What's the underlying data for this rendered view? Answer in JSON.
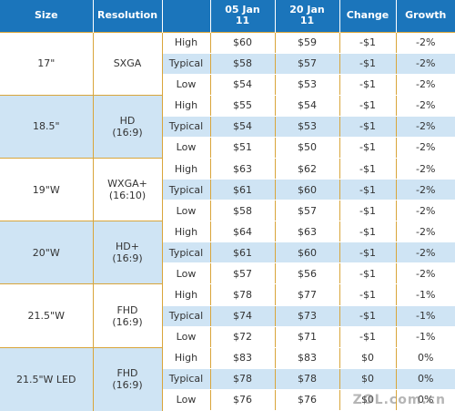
{
  "table": {
    "headers": [
      "Size",
      "Resolution",
      "",
      "05 Jan 11",
      "20 Jan 11",
      "Change",
      "Growth"
    ],
    "groups": [
      {
        "size": "17\"",
        "resolution": "SXGA",
        "rows": [
          {
            "tier": "High",
            "jan05": "$60",
            "jan20": "$59",
            "change": "-$1",
            "growth": "-2%"
          },
          {
            "tier": "Typical",
            "jan05": "$58",
            "jan20": "$57",
            "change": "-$1",
            "growth": "-2%"
          },
          {
            "tier": "Low",
            "jan05": "$54",
            "jan20": "$53",
            "change": "-$1",
            "growth": "-2%"
          }
        ]
      },
      {
        "size": "18.5\"",
        "resolution": "HD\n(16:9)",
        "rows": [
          {
            "tier": "High",
            "jan05": "$55",
            "jan20": "$54",
            "change": "-$1",
            "growth": "-2%"
          },
          {
            "tier": "Typical",
            "jan05": "$54",
            "jan20": "$53",
            "change": "-$1",
            "growth": "-2%"
          },
          {
            "tier": "Low",
            "jan05": "$51",
            "jan20": "$50",
            "change": "-$1",
            "growth": "-2%"
          }
        ]
      },
      {
        "size": "19\"W",
        "resolution": "WXGA+\n(16:10)",
        "rows": [
          {
            "tier": "High",
            "jan05": "$63",
            "jan20": "$62",
            "change": "-$1",
            "growth": "-2%"
          },
          {
            "tier": "Typical",
            "jan05": "$61",
            "jan20": "$60",
            "change": "-$1",
            "growth": "-2%"
          },
          {
            "tier": "Low",
            "jan05": "$58",
            "jan20": "$57",
            "change": "-$1",
            "growth": "-2%"
          }
        ]
      },
      {
        "size": "20\"W",
        "resolution": "HD+\n(16:9)",
        "rows": [
          {
            "tier": "High",
            "jan05": "$64",
            "jan20": "$63",
            "change": "-$1",
            "growth": "-2%"
          },
          {
            "tier": "Typical",
            "jan05": "$61",
            "jan20": "$60",
            "change": "-$1",
            "growth": "-2%"
          },
          {
            "tier": "Low",
            "jan05": "$57",
            "jan20": "$56",
            "change": "-$1",
            "growth": "-2%"
          }
        ]
      },
      {
        "size": "21.5\"W",
        "resolution": "FHD\n(16:9)",
        "rows": [
          {
            "tier": "High",
            "jan05": "$78",
            "jan20": "$77",
            "change": "-$1",
            "growth": "-1%"
          },
          {
            "tier": "Typical",
            "jan05": "$74",
            "jan20": "$73",
            "change": "-$1",
            "growth": "-1%"
          },
          {
            "tier": "Low",
            "jan05": "$72",
            "jan20": "$71",
            "change": "-$1",
            "growth": "-1%"
          }
        ]
      },
      {
        "size": "21.5\"W LED",
        "resolution": "FHD\n(16:9)",
        "rows": [
          {
            "tier": "High",
            "jan05": "$83",
            "jan20": "$83",
            "change": "$0",
            "growth": "0%"
          },
          {
            "tier": "Typical",
            "jan05": "$78",
            "jan20": "$78",
            "change": "$0",
            "growth": "0%"
          },
          {
            "tier": "Low",
            "jan05": "$76",
            "jan20": "$76",
            "change": "$0",
            "growth": "0%"
          }
        ]
      }
    ]
  },
  "watermark": "ZOL.com.cn",
  "colors": {
    "header": "#1b75bb",
    "stripe": "#cfe4f4",
    "border": "#d9a53a"
  }
}
